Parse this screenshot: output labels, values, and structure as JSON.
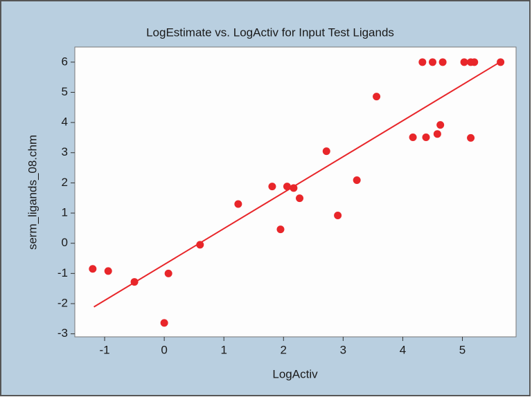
{
  "chart_data": {
    "type": "scatter",
    "title": "LogEstimate vs. LogActiv for Input Test Ligands",
    "x_label": "LogActiv",
    "y_label": "serm_ligands_08.chm",
    "x": [
      -1.2,
      -0.94,
      -0.5,
      0.07,
      0.0,
      0.6,
      1.24,
      1.81,
      1.95,
      2.06,
      2.17,
      2.27,
      2.72,
      2.91,
      3.23,
      3.56,
      4.17,
      4.33,
      4.39,
      4.5,
      4.58,
      4.63,
      4.67,
      5.03,
      5.14,
      5.2,
      5.14,
      5.64
    ],
    "values": [
      -0.85,
      -0.92,
      -1.28,
      -1.0,
      -2.64,
      -0.05,
      1.3,
      1.88,
      0.46,
      1.88,
      1.83,
      1.49,
      3.05,
      0.92,
      2.09,
      4.86,
      3.51,
      6.0,
      3.51,
      6.0,
      3.62,
      3.92,
      6.0,
      6.0,
      6.0,
      6.0,
      3.49,
      6.0
    ],
    "color": "#e8262a",
    "fit_line": {
      "x": [
        -1.18,
        5.63
      ],
      "values": [
        -2.11,
        6.0
      ]
    },
    "xlim": [
      -1.5,
      5.9
    ],
    "ylim": [
      -3.1,
      6.5
    ],
    "xticks": [
      -1,
      0,
      1,
      2,
      3,
      4,
      5
    ],
    "yticks": [
      -3,
      -2,
      -1,
      0,
      1,
      2,
      3,
      4,
      5,
      6
    ]
  }
}
